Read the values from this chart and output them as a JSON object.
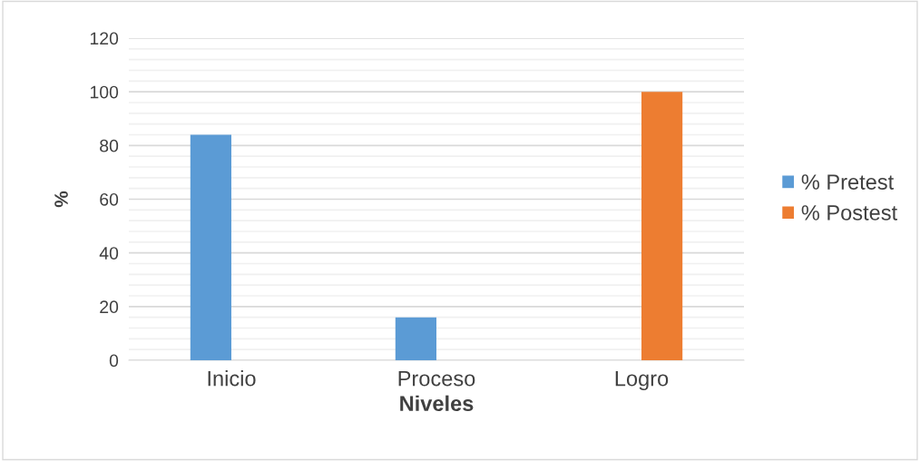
{
  "chart_data": {
    "type": "bar",
    "xlabel": "Niveles",
    "ylabel": "%",
    "categories": [
      "Inicio",
      "Proceso",
      "Logro"
    ],
    "series": [
      {
        "name": "% Pretest",
        "color": "#5b9bd5",
        "values": [
          84,
          16,
          0
        ]
      },
      {
        "name": "% Postest",
        "color": "#ed7d31",
        "values": [
          0,
          0,
          100
        ]
      }
    ],
    "ylim": [
      0,
      120
    ],
    "yticks": [
      0,
      20,
      40,
      60,
      80,
      100,
      120
    ],
    "grid": "y",
    "legend": "right"
  }
}
